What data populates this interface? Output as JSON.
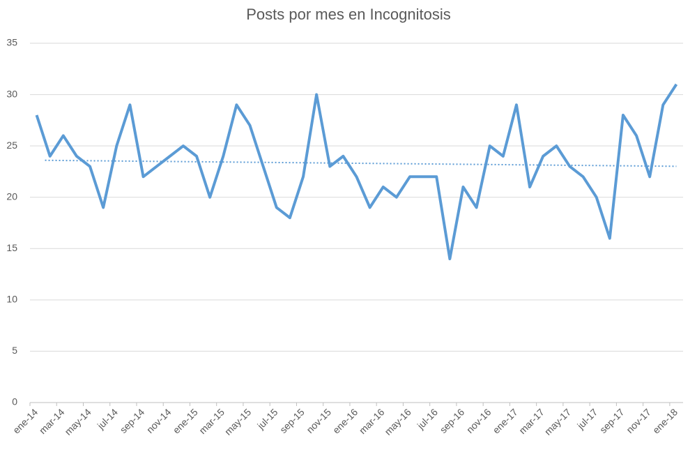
{
  "chart_data": {
    "type": "line",
    "title": "Posts por mes en Incognitosis",
    "categories": [
      "ene-14",
      null,
      "mar-14",
      null,
      "may-14",
      null,
      "jul-14",
      null,
      "sep-14",
      null,
      "nov-14",
      null,
      "ene-15",
      null,
      "mar-15",
      null,
      "may-15",
      null,
      "jul-15",
      null,
      "sep-15",
      null,
      "nov-15",
      null,
      "ene-16",
      null,
      "mar-16",
      null,
      "may-16",
      null,
      "jul-16",
      null,
      "sep-16",
      null,
      "nov-16",
      null,
      "ene-17",
      null,
      "mar-17",
      null,
      "may-17",
      null,
      "jul-17",
      null,
      "sep-17",
      null,
      "nov-17",
      null,
      "ene-18"
    ],
    "series": [
      {
        "color": "#5b9bd5",
        "values": [
          28,
          24,
          26,
          24,
          23,
          19,
          25,
          29,
          22,
          23,
          24,
          25,
          24,
          20,
          24,
          29,
          27,
          23,
          19,
          18,
          22,
          30,
          23,
          24,
          22,
          19,
          21,
          20,
          22,
          22,
          22,
          14,
          21,
          19,
          25,
          24,
          29,
          21,
          24,
          25,
          23,
          22,
          20,
          16,
          28,
          26,
          22,
          29,
          31
        ]
      }
    ],
    "ylim": [
      0,
      35
    ],
    "yticks": [
      0,
      5,
      10,
      15,
      20,
      25,
      30,
      35
    ],
    "grid": true,
    "trendline": "linear"
  }
}
